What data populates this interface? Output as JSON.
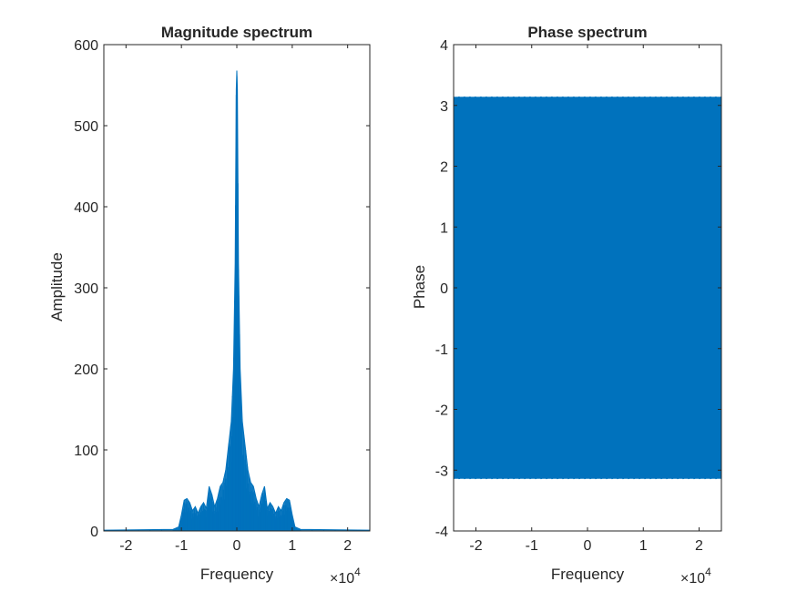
{
  "chart_data": [
    {
      "type": "line",
      "title": "Magnitude spectrum",
      "xlabel": "Frequency",
      "ylabel": "Amplitude",
      "xlim": [
        -24000,
        24000
      ],
      "ylim": [
        0,
        600
      ],
      "x_ticks": [
        -20000,
        -10000,
        0,
        10000,
        20000
      ],
      "x_tick_labels": [
        "-2",
        "-1",
        "0",
        "1",
        "2"
      ],
      "y_ticks": [
        0,
        100,
        200,
        300,
        400,
        500,
        600
      ],
      "y_tick_labels": [
        "0",
        "100",
        "200",
        "300",
        "400",
        "500",
        "600"
      ],
      "x_exponent_base": "×10",
      "x_exponent_power": "4",
      "grid": false,
      "series": [
        {
          "color": "#0072BD",
          "x": [
            -24000,
            -11500,
            -10500,
            -10000,
            -9500,
            -9000,
            -8500,
            -8000,
            -7500,
            -7000,
            -6500,
            -6000,
            -5500,
            -5000,
            -4500,
            -4000,
            -3500,
            -3000,
            -2500,
            -2000,
            -1500,
            -1000,
            -600,
            -300,
            -100,
            0,
            100,
            300,
            600,
            1000,
            1500,
            2000,
            2500,
            3000,
            3500,
            4000,
            4500,
            5000,
            5500,
            6000,
            6500,
            7000,
            7500,
            8000,
            8500,
            9000,
            9500,
            10000,
            10500,
            11500,
            24000
          ],
          "y": [
            1,
            2,
            5,
            20,
            38,
            40,
            35,
            25,
            30,
            22,
            30,
            35,
            28,
            55,
            45,
            30,
            40,
            55,
            60,
            75,
            105,
            135,
            200,
            330,
            545,
            568,
            545,
            330,
            200,
            135,
            105,
            75,
            60,
            55,
            40,
            30,
            45,
            55,
            28,
            35,
            30,
            22,
            30,
            25,
            35,
            40,
            38,
            20,
            5,
            2,
            1
          ]
        }
      ]
    },
    {
      "type": "line",
      "title": "Phase spectrum",
      "xlabel": "Frequency",
      "ylabel": "Phase",
      "xlim": [
        -24000,
        24000
      ],
      "ylim": [
        -4,
        4
      ],
      "x_ticks": [
        -20000,
        -10000,
        0,
        10000,
        20000
      ],
      "x_tick_labels": [
        "-2",
        "-1",
        "0",
        "1",
        "2"
      ],
      "y_ticks": [
        -4,
        -3,
        -2,
        -1,
        0,
        1,
        2,
        3,
        4
      ],
      "y_tick_labels": [
        "-4",
        "-3",
        "-2",
        "-1",
        "0",
        "1",
        "2",
        "3",
        "4"
      ],
      "x_exponent_base": "×10",
      "x_exponent_power": "4",
      "grid": false,
      "series": [
        {
          "color": "#0072BD",
          "x_range": [
            -24000,
            24000
          ],
          "y_range": [
            -3.1416,
            3.1416
          ]
        }
      ]
    }
  ]
}
